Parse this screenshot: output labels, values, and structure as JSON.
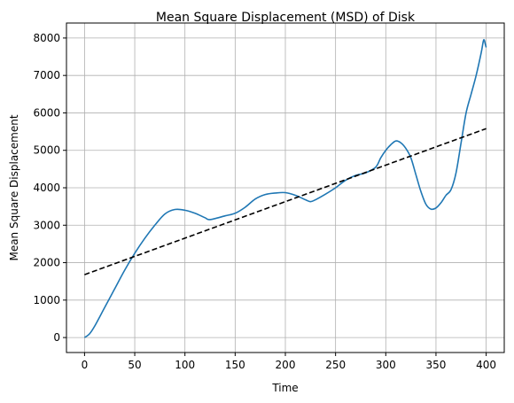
{
  "chart_data": {
    "type": "line",
    "title": "Mean Square Displacement (MSD) of Disk",
    "xlabel": "Time",
    "ylabel": "Mean Square Displacement",
    "xlim": [
      -18,
      418
    ],
    "ylim": [
      -400,
      8400
    ],
    "xticks": [
      0,
      50,
      100,
      150,
      200,
      250,
      300,
      350,
      400
    ],
    "yticks": [
      0,
      1000,
      2000,
      3000,
      4000,
      5000,
      6000,
      7000,
      8000
    ],
    "grid": true,
    "series": [
      {
        "style": "solid",
        "color": "#1f77b4",
        "x": [
          0,
          5,
          10,
          20,
          30,
          40,
          50,
          60,
          70,
          80,
          90,
          100,
          110,
          120,
          125,
          140,
          150,
          160,
          170,
          180,
          190,
          200,
          210,
          220,
          225,
          230,
          240,
          250,
          260,
          270,
          280,
          290,
          295,
          300,
          305,
          310,
          315,
          320,
          325,
          330,
          335,
          340,
          345,
          350,
          355,
          360,
          365,
          370,
          375,
          380,
          385,
          390,
          395,
          397,
          398,
          399,
          400
        ],
        "y": [
          0,
          100,
          300,
          800,
          1300,
          1800,
          2250,
          2650,
          3000,
          3300,
          3420,
          3400,
          3320,
          3200,
          3150,
          3250,
          3320,
          3480,
          3700,
          3820,
          3860,
          3870,
          3800,
          3680,
          3630,
          3680,
          3830,
          4000,
          4200,
          4330,
          4400,
          4550,
          4800,
          5000,
          5150,
          5250,
          5200,
          5050,
          4800,
          4350,
          3900,
          3560,
          3430,
          3460,
          3600,
          3800,
          3950,
          4400,
          5200,
          6000,
          6500,
          7000,
          7600,
          7900,
          7950,
          7850,
          7750
        ]
      },
      {
        "style": "dashed",
        "color": "#000000",
        "x": [
          0,
          400
        ],
        "y": [
          1680,
          5580
        ]
      }
    ]
  }
}
